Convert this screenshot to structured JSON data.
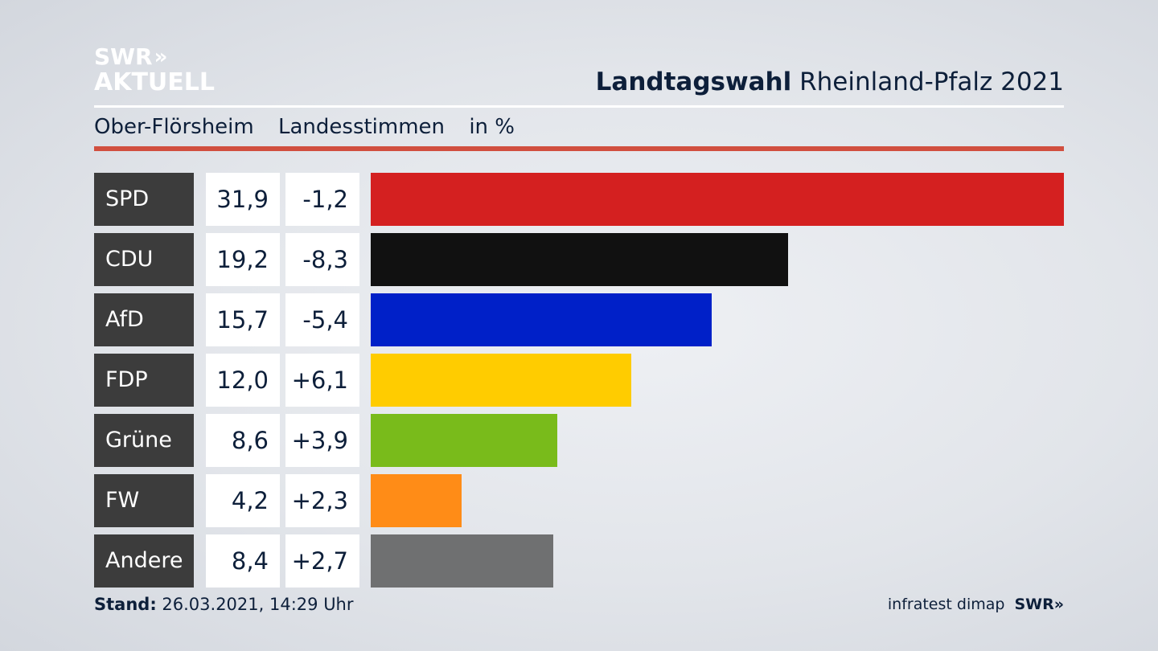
{
  "header": {
    "logo_line1": "SWR",
    "logo_line2": "AKTUELL",
    "title_bold": "Landtagswahl",
    "title_rest": "Rheinland-Pfalz 2021"
  },
  "subtitle": {
    "place": "Ober-Flörsheim",
    "measure": "Landesstimmen",
    "unit": "in %"
  },
  "chart_data": {
    "type": "bar",
    "categories": [
      "SPD",
      "CDU",
      "AfD",
      "FDP",
      "Grüne",
      "FW",
      "Andere"
    ],
    "values": [
      31.9,
      19.2,
      15.7,
      12.0,
      8.6,
      4.2,
      8.4
    ],
    "value_labels": [
      "31,9",
      "19,2",
      "15,7",
      "12,0",
      "8,6",
      "4,2",
      "8,4"
    ],
    "change_labels": [
      "-1,2",
      "-8,3",
      "-5,4",
      "+6,1",
      "+3,9",
      "+2,3",
      "+2,7"
    ],
    "changes": [
      -1.2,
      -8.3,
      -5.4,
      6.1,
      3.9,
      2.3,
      2.7
    ],
    "colors": [
      "#d42020",
      "#111111",
      "#0020c8",
      "#ffcc00",
      "#79bb1b",
      "#ff8c17",
      "#6f7071"
    ]
  },
  "footer": {
    "stand_label": "Stand:",
    "stand_value": "26.03.2021, 14:29 Uhr",
    "source": "infratest dimap",
    "brand": "SWR"
  }
}
